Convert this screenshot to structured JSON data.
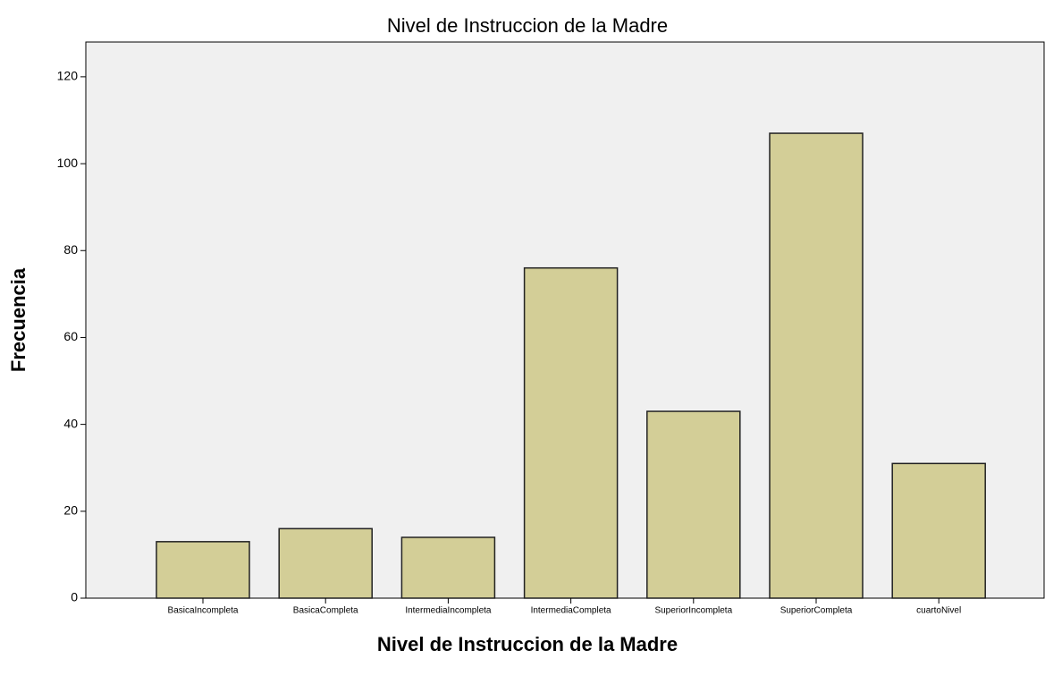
{
  "chart_data": {
    "type": "bar",
    "title": "Nivel de Instruccion de la Madre",
    "x_label": "Nivel de Instruccion de la Madre",
    "y_label": "Frecuencia",
    "categories": [
      "BasicaIncompleta",
      "BasicaCompleta",
      "IntermediaIncompleta",
      "IntermediaCompleta",
      "SuperiorIncompleta",
      "SuperiorCompleta",
      "cuartoNivel"
    ],
    "values": [
      13,
      16,
      14,
      76,
      43,
      107,
      31
    ],
    "color": "#d3ce97",
    "ylim": [
      0,
      128
    ],
    "yticks": [
      0,
      20,
      40,
      60,
      80,
      100,
      120
    ],
    "grid": false
  }
}
